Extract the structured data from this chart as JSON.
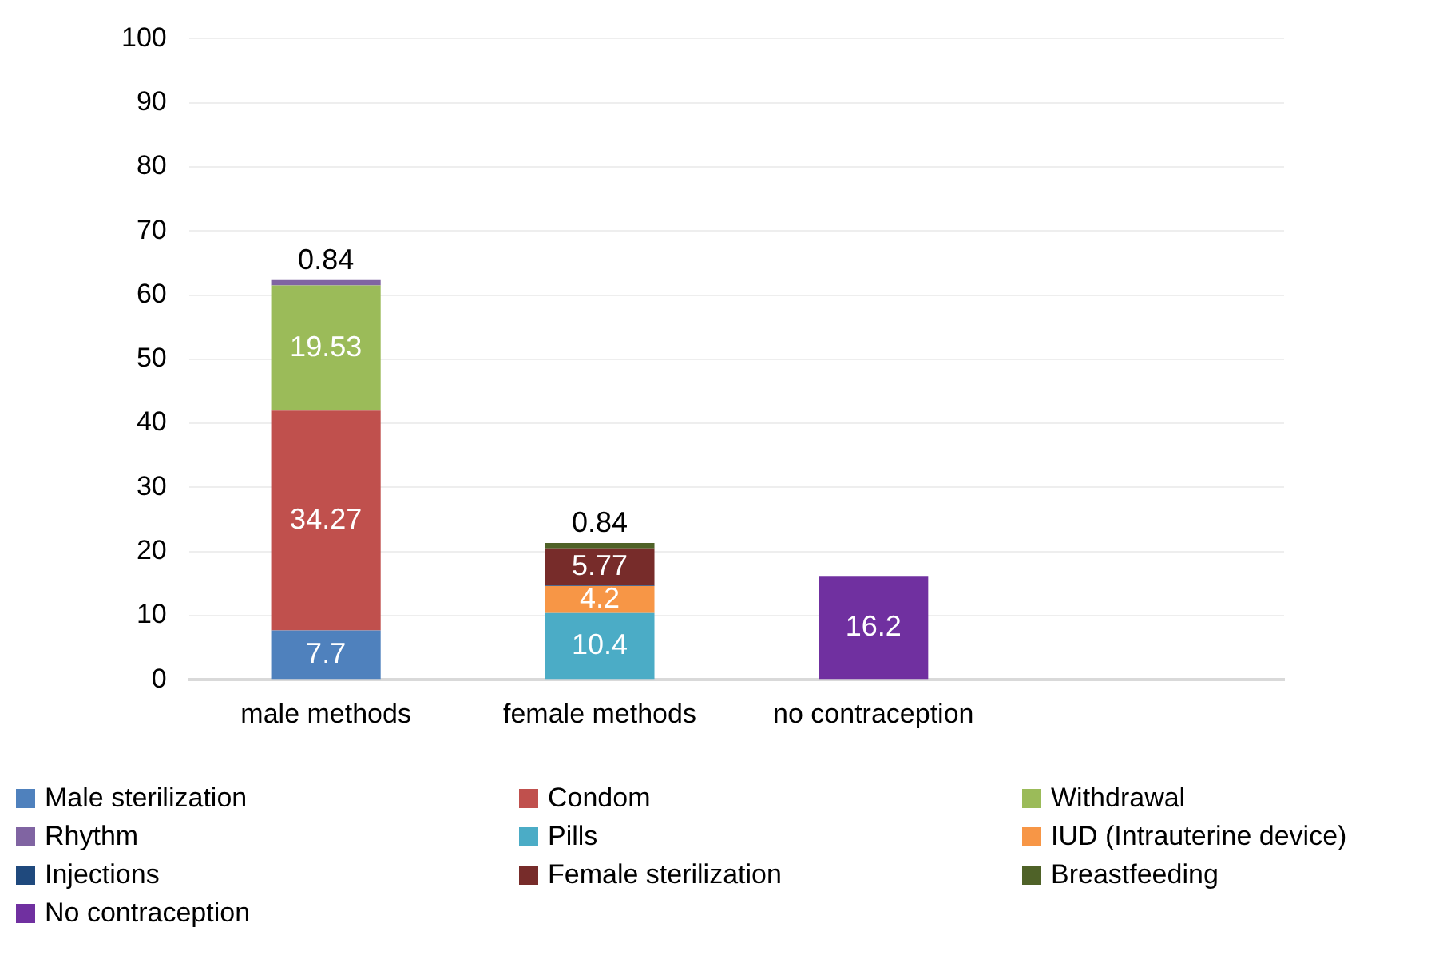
{
  "chart_data": {
    "type": "bar",
    "stacked": true,
    "categories": [
      "male methods",
      "female methods",
      "no contraception",
      null
    ],
    "ylim": [
      0,
      100
    ],
    "yticks": [
      0,
      10,
      20,
      30,
      40,
      50,
      60,
      70,
      80,
      90,
      100
    ],
    "grid": "y",
    "legend": "bottom",
    "series": [
      {
        "name": "Male sterilization",
        "color": "#4f81bd",
        "values": [
          7.7,
          null,
          null,
          null
        ],
        "value_labels": [
          "7.7",
          null,
          null,
          null
        ]
      },
      {
        "name": "Condom",
        "color": "#c0504d",
        "values": [
          34.27,
          null,
          null,
          null
        ],
        "value_labels": [
          "34.27",
          null,
          null,
          null
        ]
      },
      {
        "name": "Withdrawal",
        "color": "#9bbb59",
        "values": [
          19.53,
          null,
          null,
          null
        ],
        "value_labels": [
          "19.53",
          null,
          null,
          null
        ]
      },
      {
        "name": "Rhythm",
        "color": "#8064a2",
        "values": [
          0.84,
          null,
          null,
          null
        ],
        "value_labels": [
          "0.84",
          null,
          null,
          null
        ]
      },
      {
        "name": "Pills",
        "color": "#4bacc6",
        "values": [
          null,
          10.4,
          null,
          null
        ],
        "value_labels": [
          null,
          "10.4",
          null,
          null
        ]
      },
      {
        "name": "IUD (Intrauterine device)",
        "color": "#f79646",
        "values": [
          null,
          4.2,
          null,
          null
        ],
        "value_labels": [
          null,
          "4.2",
          null,
          null
        ]
      },
      {
        "name": "Injections",
        "color": "#1f497d",
        "values": [
          null,
          0.1,
          null,
          null
        ],
        "value_labels": [
          null,
          null,
          null,
          null
        ]
      },
      {
        "name": "Female sterilization",
        "color": "#772c2a",
        "values": [
          null,
          5.77,
          null,
          null
        ],
        "value_labels": [
          null,
          "5.77",
          null,
          null
        ]
      },
      {
        "name": "Breastfeeding",
        "color": "#4f6228",
        "values": [
          null,
          0.84,
          null,
          null
        ],
        "value_labels": [
          null,
          "0.84",
          null,
          null
        ]
      },
      {
        "name": "No contraception",
        "color": "#7030a0",
        "values": [
          null,
          null,
          16.2,
          null
        ],
        "value_labels": [
          null,
          null,
          "16.2",
          null
        ]
      }
    ]
  }
}
